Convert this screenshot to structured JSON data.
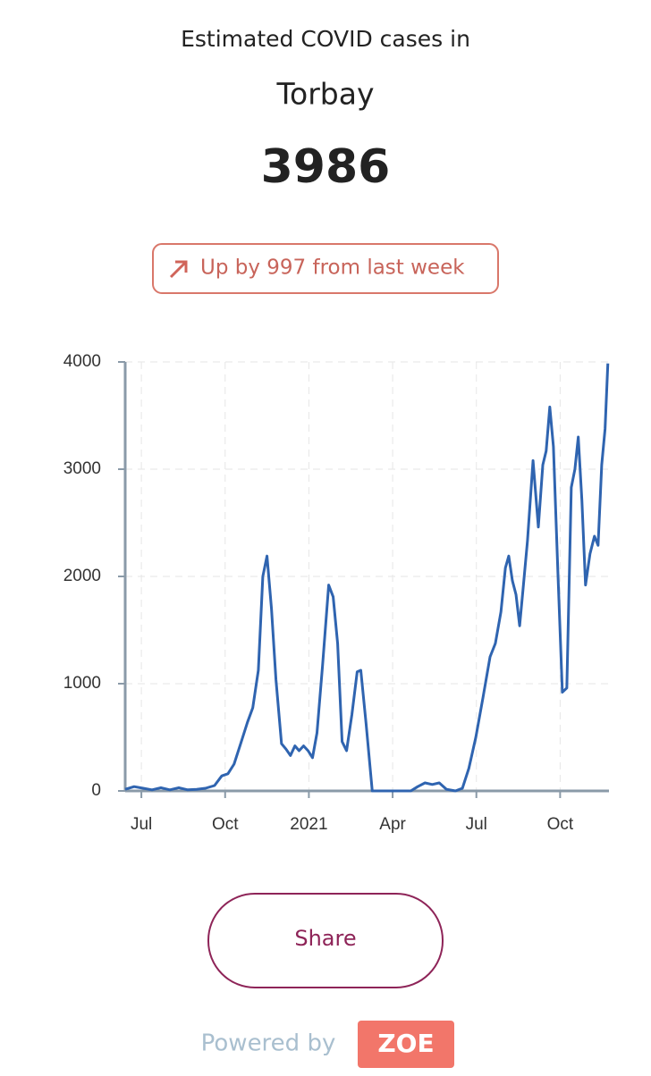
{
  "header": {
    "title": "Estimated COVID cases in",
    "location": "Torbay",
    "count": "3986"
  },
  "badge": {
    "text": "Up by 997 from last week"
  },
  "chart_data": {
    "type": "line",
    "x": [
      -0.58,
      -0.26,
      0.06,
      0.38,
      0.7,
      1.02,
      1.34,
      1.66,
      1.98,
      2.3,
      2.62,
      2.88,
      3.1,
      3.32,
      3.58,
      3.8,
      3.99,
      4.19,
      4.35,
      4.5,
      4.66,
      4.82,
      5.02,
      5.18,
      5.34,
      5.5,
      5.65,
      5.81,
      5.97,
      6.13,
      6.29,
      6.49,
      6.71,
      6.87,
      7.03,
      7.19,
      7.35,
      7.54,
      7.73,
      7.86,
      8.05,
      8.27,
      9.01,
      9.65,
      9.9,
      10.16,
      10.42,
      10.67,
      10.93,
      11.25,
      11.5,
      11.73,
      11.98,
      12.24,
      12.49,
      12.68,
      12.88,
      13.04,
      13.16,
      13.29,
      13.42,
      13.55,
      13.67,
      13.83,
      14.03,
      14.22,
      14.38,
      14.5,
      14.63,
      14.76,
      14.92,
      15.08,
      15.24,
      15.4,
      15.53,
      15.65,
      15.78,
      15.91,
      16.07,
      16.23,
      16.36,
      16.49,
      16.61,
      16.71
    ],
    "values": [
      15,
      40,
      25,
      10,
      30,
      10,
      30,
      10,
      15,
      25,
      50,
      140,
      160,
      250,
      460,
      640,
      775,
      1125,
      2000,
      2190,
      1700,
      1040,
      440,
      390,
      330,
      420,
      375,
      420,
      375,
      310,
      540,
      1170,
      1920,
      1810,
      1375,
      460,
      375,
      710,
      1110,
      1125,
      625,
      0,
      0,
      0,
      40,
      75,
      60,
      75,
      15,
      0,
      25,
      210,
      500,
      875,
      1250,
      1375,
      1670,
      2080,
      2190,
      1960,
      1830,
      1540,
      1875,
      2330,
      3080,
      2460,
      3040,
      3170,
      3580,
      3210,
      2040,
      920,
      960,
      2830,
      3000,
      3300,
      2710,
      1920,
      2210,
      2375,
      2290,
      3040,
      3375,
      3986
    ],
    "color": "#2f64b0",
    "xlim": [
      -0.58,
      16.75
    ],
    "ylim": [
      0,
      4000
    ],
    "xticks": [
      {
        "value": 0,
        "label": "Jul"
      },
      {
        "value": 3,
        "label": "Oct"
      },
      {
        "value": 6,
        "label": "2021"
      },
      {
        "value": 9,
        "label": "Apr"
      },
      {
        "value": 12,
        "label": "Jul"
      },
      {
        "value": 15,
        "label": "Oct"
      }
    ],
    "yticks": [
      0,
      1000,
      2000,
      3000,
      4000
    ],
    "grid": true
  },
  "share": {
    "label": "Share"
  },
  "footer": {
    "powered": "Powered by",
    "brand": "ZOE"
  }
}
